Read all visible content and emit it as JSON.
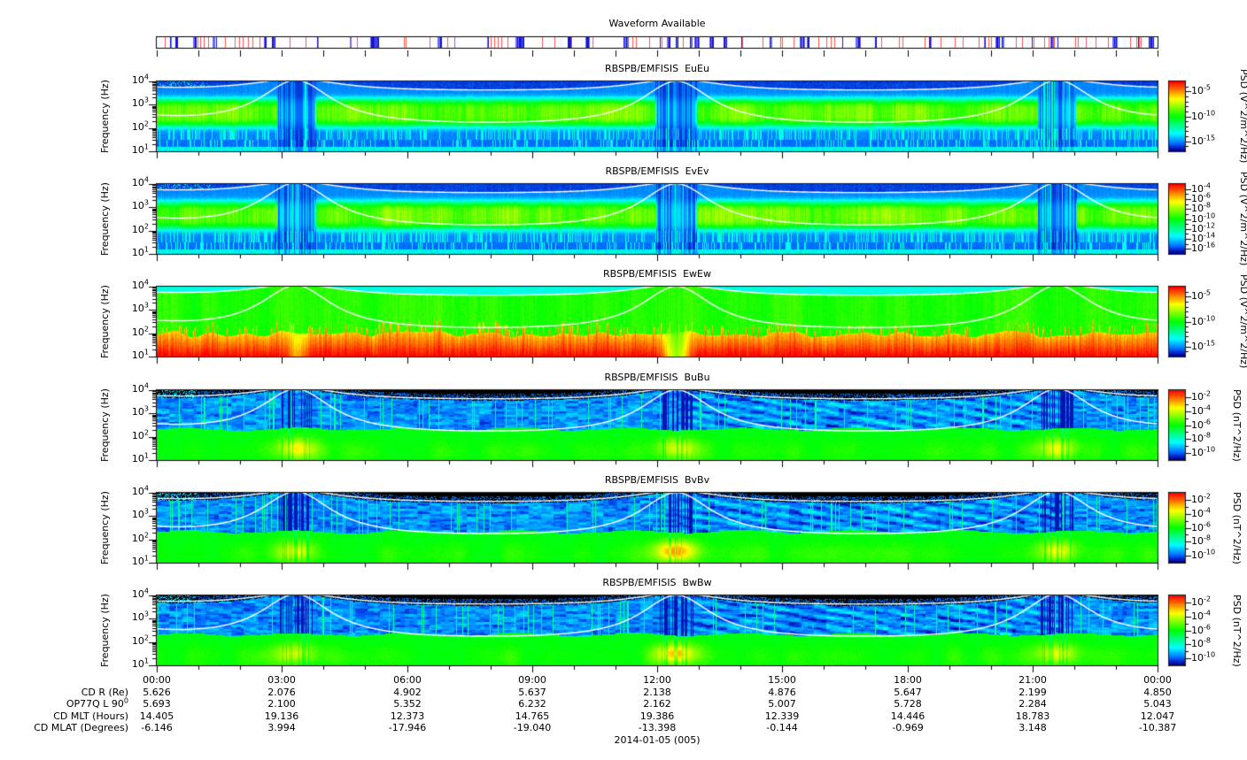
{
  "chart_data": {
    "type": "heatmap",
    "strip": {
      "title": "Waveform Available",
      "line_colors": {
        "available": "#1515d0",
        "available_light": "#6b6bee",
        "flagged": "#ff5555"
      }
    },
    "time_axis": {
      "tick_labels": [
        "00:00",
        "03:00",
        "06:00",
        "09:00",
        "12:00",
        "15:00",
        "18:00",
        "21:00",
        "00:00"
      ],
      "tick_hours": [
        0,
        3,
        6,
        9,
        12,
        15,
        18,
        21,
        24
      ],
      "minor_tick_interval_hours": 1,
      "range_hours": [
        0,
        24
      ]
    },
    "frequency_axis": {
      "label": "Frequency (Hz)",
      "tick_labels": [
        "10^4",
        "10^3",
        "10^2",
        "10^1"
      ],
      "range_hz": [
        10,
        10000
      ],
      "scale": "log"
    },
    "panels": [
      {
        "id": "EuEu",
        "title": "RBSPB/EMFISIS  EuEu",
        "style": "E",
        "colorbar": {
          "label": "PSD (V^2/m^2/Hz)",
          "top_exp": -3,
          "bottom_exp": -17,
          "labeled_exps": [
            -5,
            -10,
            -15
          ],
          "tick_labels": [
            "10^-5",
            "10^-10",
            "10^-15"
          ]
        }
      },
      {
        "id": "EvEv",
        "title": "RBSPB/EMFISIS  EvEv",
        "style": "E",
        "colorbar": {
          "label": "PSD (V^2/m^2/Hz)",
          "top_exp": -3,
          "bottom_exp": -17,
          "labeled_exps": [
            -4,
            -6,
            -8,
            -10,
            -12,
            -14,
            -16
          ],
          "tick_labels": [
            "10^-4",
            "10^-6",
            "10^-8",
            "10^-10",
            "10^-12",
            "10^-14",
            "10^-16"
          ]
        }
      },
      {
        "id": "EwEw",
        "title": "RBSPB/EMFISIS  EwEw",
        "style": "Ew",
        "colorbar": {
          "label": "PSD (V^2/m^2/Hz)",
          "top_exp": -3,
          "bottom_exp": -17,
          "labeled_exps": [
            -5,
            -10,
            -15
          ],
          "tick_labels": [
            "10^-5",
            "10^-10",
            "10^-15"
          ]
        }
      },
      {
        "id": "BuBu",
        "title": "RBSPB/EMFISIS  BuBu",
        "style": "B",
        "blob_amps": [
          0.22,
          0.2,
          0.2
        ],
        "colorbar": {
          "label": "PSD (nT^2/Hz)",
          "top_exp": -1,
          "bottom_exp": -11,
          "labeled_exps": [
            -2,
            -4,
            -6,
            -8,
            -10
          ],
          "tick_labels": [
            "10^-2",
            "10^-4",
            "10^-6",
            "10^-8",
            "10^-10"
          ]
        }
      },
      {
        "id": "BvBv",
        "title": "RBSPB/EMFISIS  BvBv",
        "style": "B",
        "blob_amps": [
          0.2,
          0.32,
          0.22
        ],
        "colorbar": {
          "label": "PSD (nT^2/Hz)",
          "top_exp": -1,
          "bottom_exp": -11,
          "labeled_exps": [
            -2,
            -4,
            -6,
            -8,
            -10
          ],
          "tick_labels": [
            "10^-2",
            "10^-4",
            "10^-6",
            "10^-8",
            "10^-10"
          ]
        }
      },
      {
        "id": "BwBw",
        "title": "RBSPB/EMFISIS  BwBw",
        "style": "B",
        "blob_amps": [
          0.2,
          0.3,
          0.22
        ],
        "colorbar": {
          "label": "PSD (nT^2/Hz)",
          "top_exp": -1,
          "bottom_exp": -11,
          "labeled_exps": [
            -2,
            -4,
            -6,
            -8,
            -10
          ],
          "tick_labels": [
            "10^-2",
            "10^-4",
            "10^-6",
            "10^-8",
            "10^-10"
          ]
        }
      }
    ],
    "orbit": {
      "perigee_hours": [
        3.33,
        12.45,
        21.58
      ],
      "white_curve_count_per_panel": 2
    },
    "ephemeris": {
      "rows": [
        {
          "label": "CD R (Re)",
          "values": [
            "5.626",
            "2.076",
            "4.902",
            "5.637",
            "2.138",
            "4.876",
            "5.647",
            "2.199",
            "4.850"
          ]
        },
        {
          "label": "OP77Q L 90^0",
          "values": [
            "5.693",
            "2.100",
            "5.352",
            "6.232",
            "2.162",
            "5.007",
            "5.728",
            "2.284",
            "5.043"
          ]
        },
        {
          "label": "CD MLT (Hours)",
          "values": [
            "14.405",
            "19.136",
            "12.373",
            "14.765",
            "19.386",
            "12.339",
            "14.446",
            "18.783",
            "12.047"
          ]
        },
        {
          "label": "CD MLAT (Degrees)",
          "values": [
            "-6.146",
            "3.994",
            "-17.946",
            "-19.040",
            "-13.398",
            "-0.144",
            "-0.969",
            "3.148",
            "-10.387"
          ]
        }
      ],
      "date_label": "2014-01-05 (005)"
    }
  },
  "colors": {
    "background": "#ffffff",
    "axis": "#000000",
    "white_curve": "#ffffff"
  }
}
